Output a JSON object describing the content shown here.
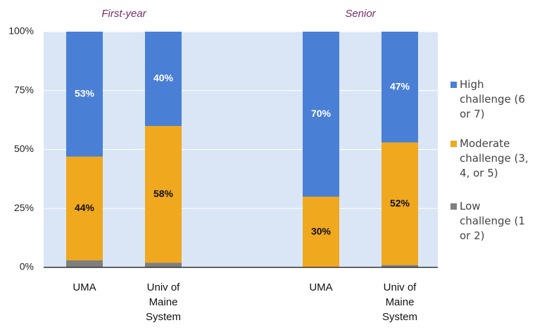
{
  "chart_data": {
    "type": "stacked_bar",
    "groups": [
      "First-year",
      "Senior"
    ],
    "categories": [
      "UMA",
      "Univ of Maine System",
      "UMA",
      "Univ of Maine System"
    ],
    "series": [
      {
        "name": "Low challenge (1 or 2)",
        "color": "#7f7f7f",
        "values": [
          3,
          2,
          0,
          1
        ]
      },
      {
        "name": "Moderate challenge (3, 4, or 5)",
        "color": "#f0a81f",
        "values": [
          44,
          58,
          30,
          52
        ],
        "value_labels": [
          "44%",
          "58%",
          "30%",
          "52%"
        ]
      },
      {
        "name": "High challenge (6 or 7)",
        "color": "#4a7fd6",
        "values": [
          53,
          40,
          70,
          47
        ],
        "value_labels": [
          "53%",
          "40%",
          "70%",
          "47%"
        ]
      }
    ],
    "ylim": [
      0,
      100
    ],
    "yticks": [
      {
        "value": 0,
        "label": "0%"
      },
      {
        "value": 25,
        "label": "25%"
      },
      {
        "value": 50,
        "label": "50%"
      },
      {
        "value": 75,
        "label": "75%"
      },
      {
        "value": 100,
        "label": "100%"
      }
    ],
    "grid": true,
    "legend": "right"
  }
}
